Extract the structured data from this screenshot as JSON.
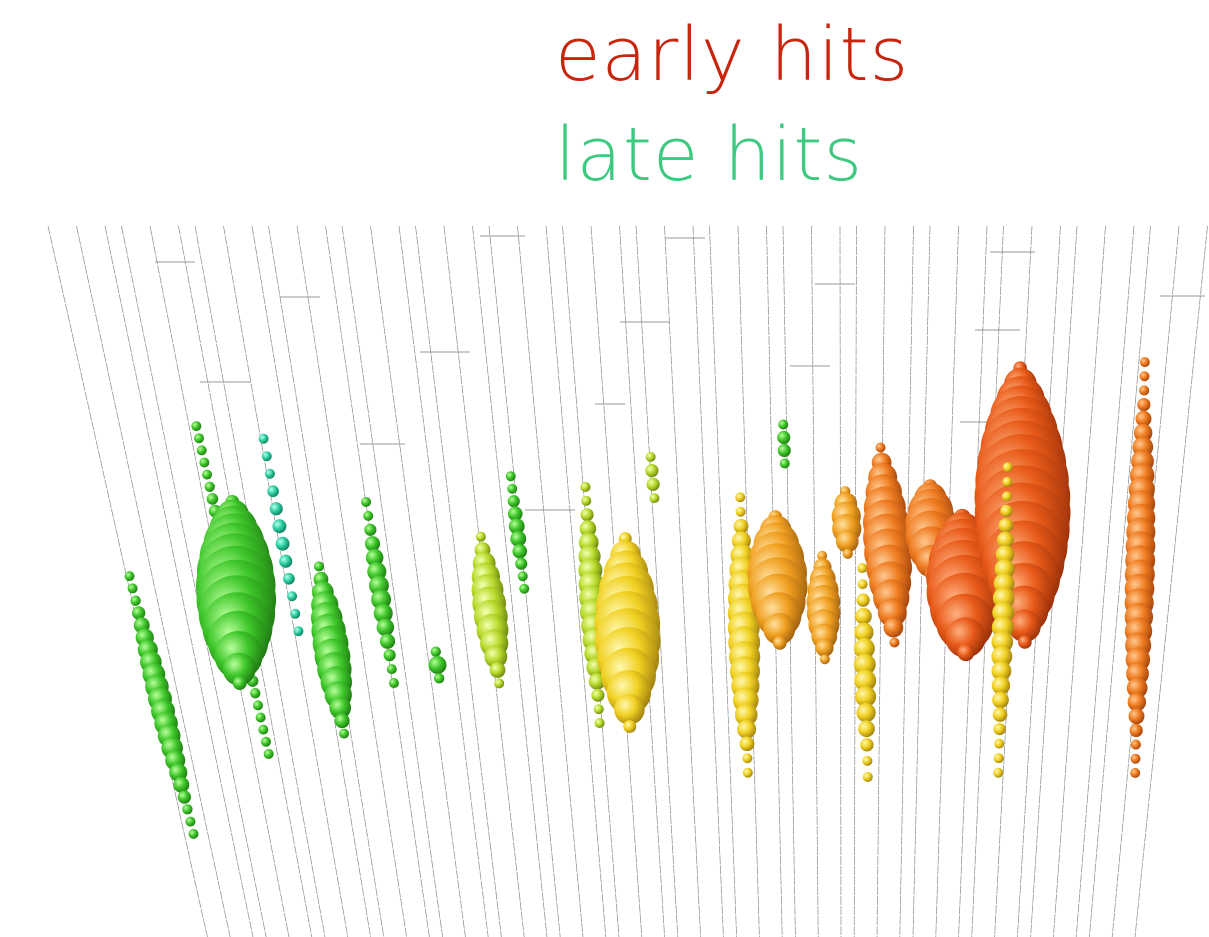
{
  "legend": {
    "early": "early hits",
    "late": "late hits"
  }
}
